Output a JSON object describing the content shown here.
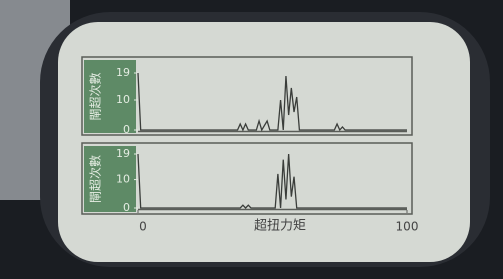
{
  "chart_data": [
    {
      "type": "line",
      "ylabel": "閘超次數",
      "x": [
        0,
        1,
        37,
        38,
        39,
        40,
        41,
        44,
        45,
        46,
        48,
        49,
        52,
        53,
        54,
        55,
        56,
        57,
        58,
        59,
        60,
        73,
        74,
        75,
        76,
        77,
        100
      ],
      "values": [
        19,
        0,
        0,
        2,
        0,
        2,
        0,
        0,
        3,
        0,
        3,
        0,
        0,
        10,
        0,
        18,
        5,
        14,
        6,
        11,
        0,
        0,
        2,
        0,
        1,
        0,
        0
      ],
      "color": "#3a3d3a",
      "xlim": [
        0,
        100
      ],
      "ylim": [
        0,
        19
      ],
      "yticks": [
        0,
        10,
        19
      ]
    },
    {
      "type": "line",
      "ylabel": "閘超次數",
      "xlabel": "超扭力矩",
      "x": [
        0,
        1,
        38,
        39,
        40,
        41,
        42,
        51,
        52,
        53,
        54,
        55,
        56,
        57,
        58,
        59,
        100
      ],
      "values": [
        19,
        0,
        0,
        1,
        0,
        1,
        0,
        0,
        12,
        0,
        17,
        3,
        19,
        4,
        11,
        0,
        0
      ],
      "color": "#3a3d3a",
      "xlim": [
        0,
        100
      ],
      "ylim": [
        0,
        19
      ],
      "yticks": [
        0,
        10,
        19
      ],
      "xticks": [
        0,
        100
      ]
    }
  ]
}
